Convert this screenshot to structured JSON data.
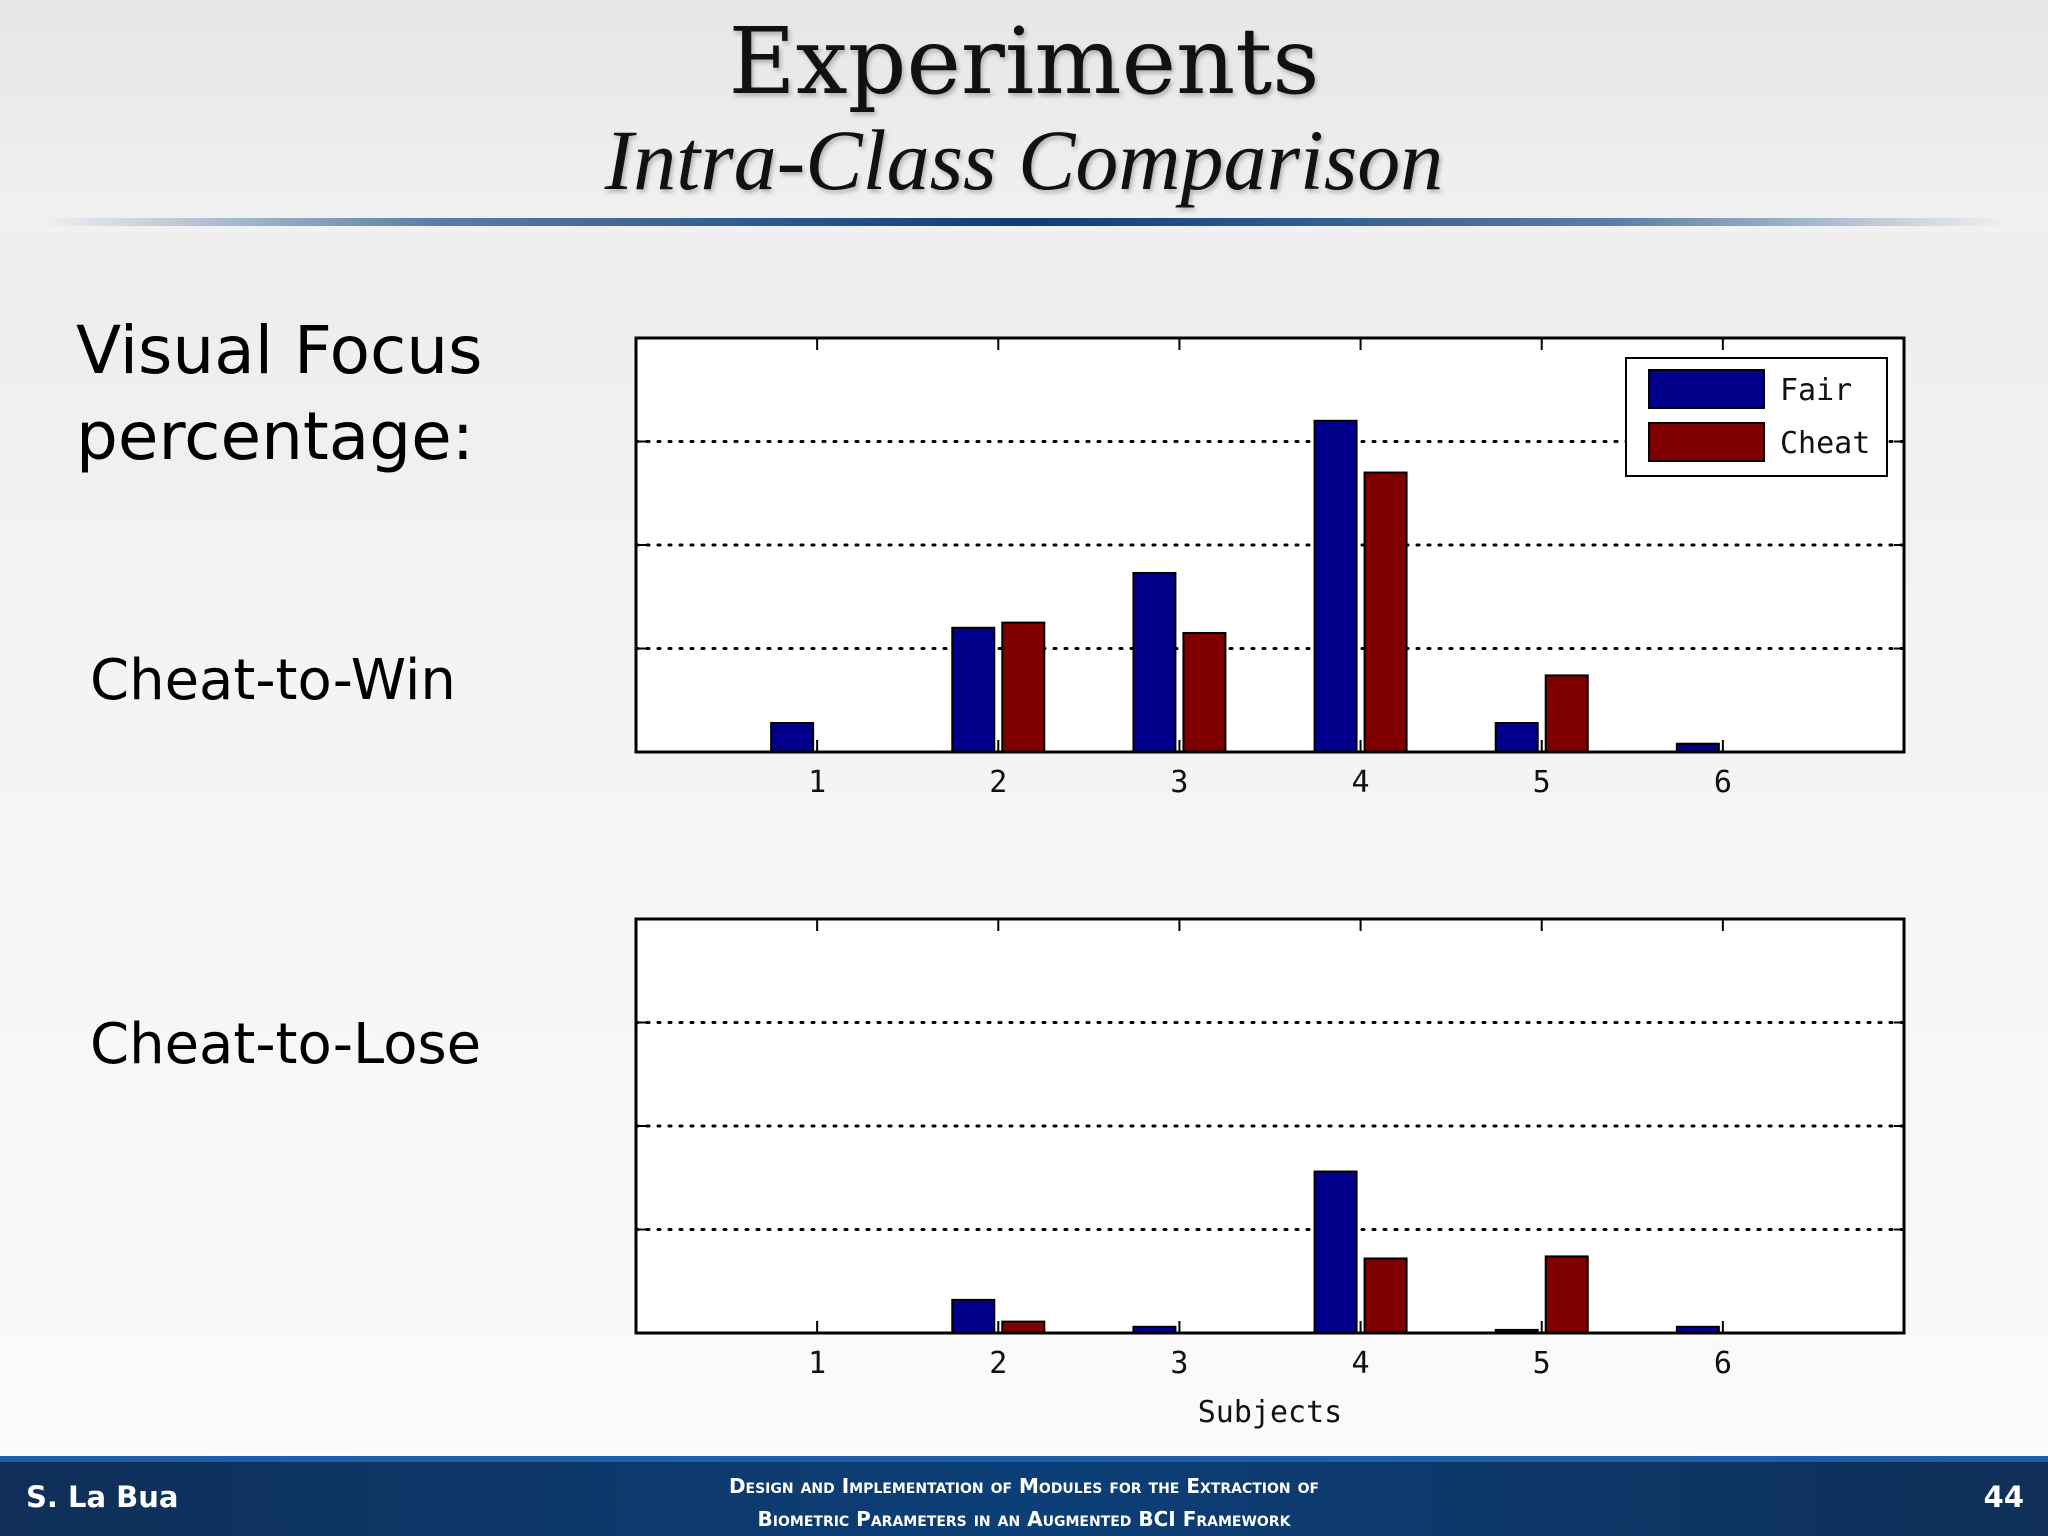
{
  "slide": {
    "title": "Experiments",
    "subtitle": "Intra-Class Comparison",
    "label_main_line1": "Visual Focus",
    "label_main_line2": "percentage:",
    "label_win": "Cheat-to-Win",
    "label_lose": "Cheat-to-Lose"
  },
  "footer": {
    "author": "S. La Bua",
    "title_line1": "Design and Implementation of Modules for the Extraction of",
    "title_line2": "Biometric Parameters in an Augmented BCI Framework",
    "page": "44"
  },
  "colors": {
    "fair": "#00008b",
    "cheat": "#7f0000"
  },
  "chart_data": [
    {
      "type": "bar",
      "title": "Cheat-to-Win",
      "xlabel": "",
      "ylabel": "",
      "categories": [
        "1",
        "2",
        "3",
        "4",
        "5",
        "6"
      ],
      "ylim": [
        0,
        4
      ],
      "yticks": [
        1,
        2,
        3
      ],
      "grid": "dotted-horizontal",
      "legend": "top-right",
      "series": [
        {
          "name": "Fair",
          "values": [
            0.28,
            1.2,
            1.73,
            3.2,
            0.28,
            0.08
          ]
        },
        {
          "name": "Cheat",
          "values": [
            0,
            1.25,
            1.15,
            2.7,
            0.74,
            0
          ]
        }
      ]
    },
    {
      "type": "bar",
      "title": "Cheat-to-Lose",
      "xlabel": "Subjects",
      "ylabel": "",
      "categories": [
        "1",
        "2",
        "3",
        "4",
        "5",
        "6"
      ],
      "ylim": [
        0,
        4
      ],
      "yticks": [
        1,
        2,
        3
      ],
      "grid": "dotted-horizontal",
      "legend": "none",
      "series": [
        {
          "name": "Fair",
          "values": [
            0,
            0.32,
            0.06,
            1.56,
            0.03,
            0.06
          ]
        },
        {
          "name": "Cheat",
          "values": [
            0,
            0.11,
            0,
            0.72,
            0.74,
            0
          ]
        }
      ]
    }
  ]
}
